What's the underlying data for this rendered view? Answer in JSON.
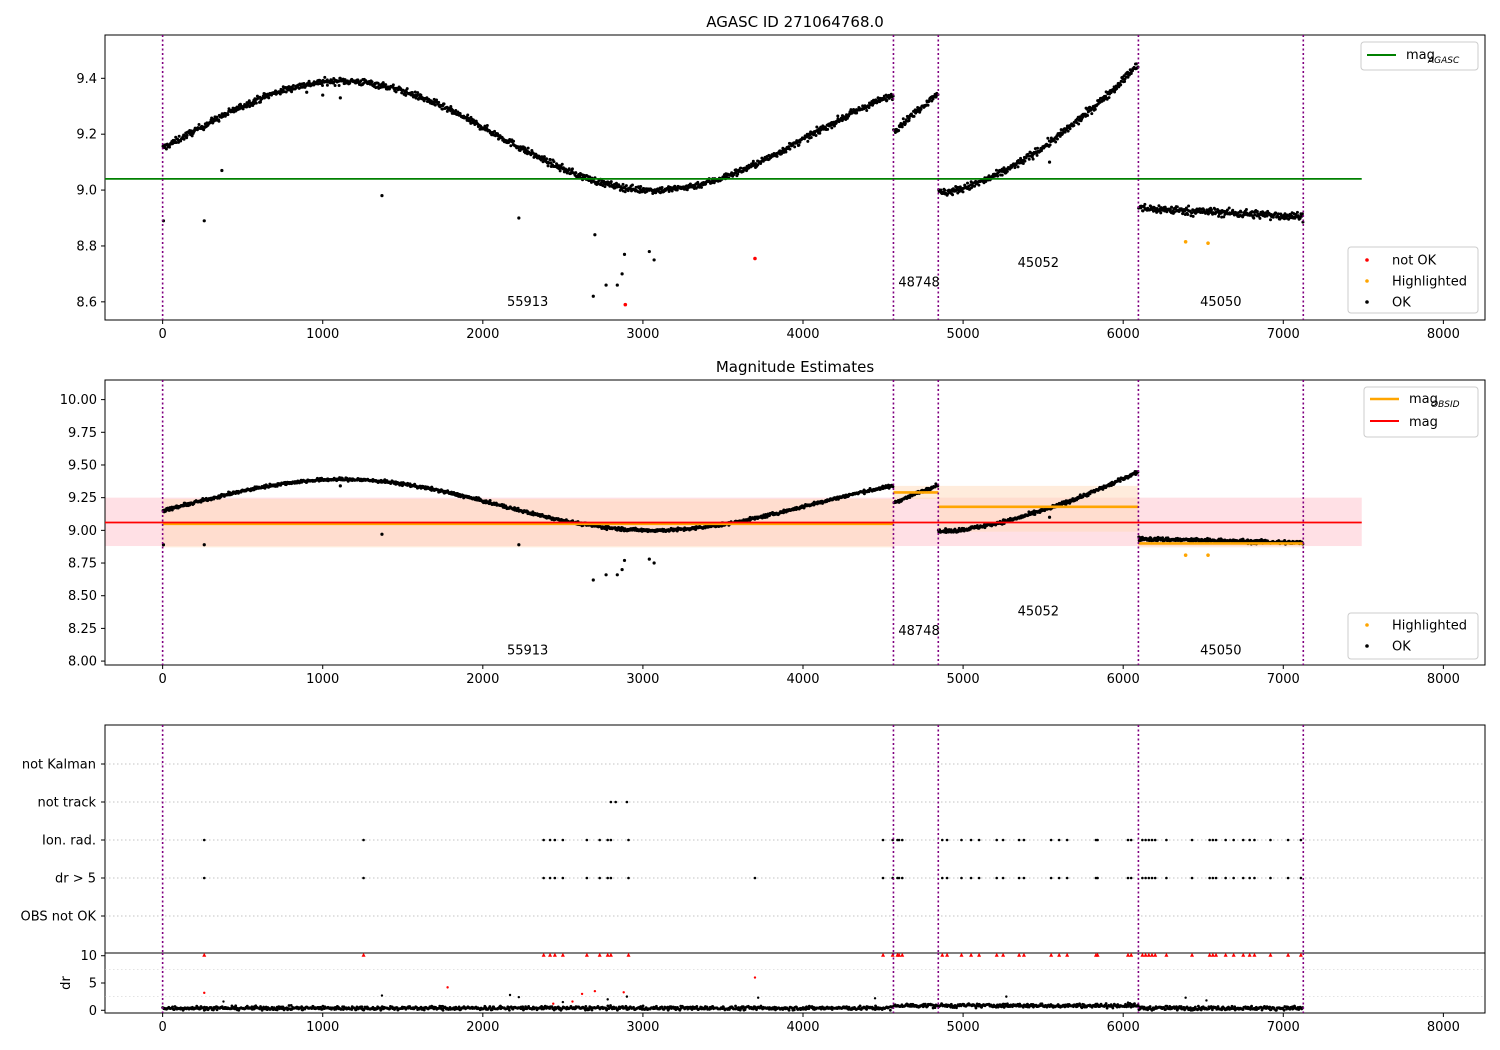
{
  "figure": {
    "title": "AGASC ID 271064768.0"
  },
  "colors": {
    "agasc_line": "#008000",
    "mag_line": "#ff0000",
    "obsid_line": "#ffa500",
    "not_ok": "#ff0000",
    "highlighted": "#ffa500",
    "ok": "#000000",
    "vline": "#800080",
    "band_mag": "#ffb6c1",
    "band_obsid": "#ffdab9"
  },
  "chart_data": [
    {
      "id": "top",
      "type": "scatter",
      "title": "AGASC ID 271064768.0",
      "xlim": [
        -360,
        8260
      ],
      "ylim": [
        8.535,
        9.555
      ],
      "xticks": [
        0,
        1000,
        2000,
        3000,
        4000,
        5000,
        6000,
        7000,
        8000
      ],
      "yticks": [
        8.6,
        8.8,
        9.0,
        9.2,
        9.4
      ],
      "ytick_labels": [
        "8.6",
        "8.8",
        "9.0",
        "9.2",
        "9.4"
      ],
      "vlines": [
        0,
        4565,
        4845,
        6095,
        7125
      ],
      "obsids": [
        {
          "label": "55913",
          "x": 2280,
          "y": 8.585
        },
        {
          "label": "48748",
          "x": 4725,
          "y": 8.655
        },
        {
          "label": "45052",
          "x": 5470,
          "y": 8.725
        },
        {
          "label": "45050",
          "x": 6610,
          "y": 8.585
        }
      ],
      "segments": [
        {
          "x0": 0,
          "x1": 4565,
          "kind": "wave",
          "amp": 0.195,
          "center": 9.195,
          "phase_x": 1120,
          "period": 3900,
          "noise": 0.012
        },
        {
          "x0": 4565,
          "x1": 4845,
          "kind": "linear",
          "y0": 9.21,
          "y1": 9.35,
          "noise": 0.012
        },
        {
          "x0": 4845,
          "x1": 6095,
          "kind": "rising",
          "y0": 8.99,
          "y1": 9.45,
          "noise": 0.014
        },
        {
          "x0": 6095,
          "x1": 7125,
          "kind": "flat",
          "y0": 8.935,
          "y1": 8.905,
          "noise": 0.015
        }
      ],
      "outliers": [
        {
          "x": 5,
          "y": 8.89
        },
        {
          "x": 260,
          "y": 8.89
        },
        {
          "x": 370,
          "y": 9.07
        },
        {
          "x": 900,
          "y": 9.35
        },
        {
          "x": 1000,
          "y": 9.34
        },
        {
          "x": 1110,
          "y": 9.33
        },
        {
          "x": 1370,
          "y": 8.98
        },
        {
          "x": 2225,
          "y": 8.9
        },
        {
          "x": 2690,
          "y": 8.62
        },
        {
          "x": 2700,
          "y": 8.84
        },
        {
          "x": 2770,
          "y": 8.66
        },
        {
          "x": 2840,
          "y": 8.66
        },
        {
          "x": 2870,
          "y": 8.7
        },
        {
          "x": 2885,
          "y": 8.77
        },
        {
          "x": 3040,
          "y": 8.78
        },
        {
          "x": 3070,
          "y": 8.75
        },
        {
          "x": 5540,
          "y": 9.1
        }
      ],
      "not_ok_points": [
        {
          "x": 2890,
          "y": 8.59
        },
        {
          "x": 3700,
          "y": 8.755
        }
      ],
      "highlighted_points": [
        {
          "x": 6390,
          "y": 8.815
        },
        {
          "x": 6530,
          "y": 8.81
        }
      ],
      "hlines": [
        {
          "name": "mag_AGASC",
          "y": 9.04,
          "x0": -360,
          "x1": 7490,
          "color": "#008000"
        }
      ],
      "legend_top": {
        "placement": "upper-right",
        "entries": [
          {
            "label": "mag",
            "sub": "AGASC"
          }
        ]
      },
      "legend_bottom": {
        "placement": "lower-right",
        "entries": [
          "not OK",
          "Highlighted",
          "OK"
        ]
      }
    },
    {
      "id": "mid",
      "type": "scatter",
      "title": "Magnitude Estimates",
      "xlim": [
        -360,
        8260
      ],
      "ylim": [
        7.97,
        10.15
      ],
      "xticks": [
        0,
        1000,
        2000,
        3000,
        4000,
        5000,
        6000,
        7000,
        8000
      ],
      "yticks": [
        8.0,
        8.25,
        8.5,
        8.75,
        9.0,
        9.25,
        9.5,
        9.75,
        10.0
      ],
      "ytick_labels": [
        "8.00",
        "8.25",
        "8.50",
        "8.75",
        "9.00",
        "9.25",
        "9.50",
        "9.75",
        "10.00"
      ],
      "vlines": [
        0,
        4565,
        4845,
        6095,
        7125
      ],
      "obsids": [
        {
          "label": "55913",
          "x": 2280,
          "y": 8.05
        },
        {
          "label": "48748",
          "x": 4725,
          "y": 8.2
        },
        {
          "label": "45052",
          "x": 5470,
          "y": 8.35
        },
        {
          "label": "45050",
          "x": 6610,
          "y": 8.05
        }
      ],
      "mag": {
        "y": 9.06,
        "lo": 8.88,
        "hi": 9.25,
        "x0": -360,
        "x1": 7490
      },
      "obsid_mags": [
        {
          "x0": 0,
          "x1": 4565,
          "y": 9.05,
          "lo": 8.87,
          "hi": 9.24
        },
        {
          "x0": 4565,
          "x1": 4845,
          "y": 9.29,
          "lo": 9.24,
          "hi": 9.34
        },
        {
          "x0": 4845,
          "x1": 6095,
          "y": 9.18,
          "lo": 8.99,
          "hi": 9.34
        },
        {
          "x0": 6095,
          "x1": 7125,
          "y": 8.9,
          "lo": 8.87,
          "hi": 8.93
        }
      ],
      "outliers": [
        {
          "x": 5,
          "y": 8.89
        },
        {
          "x": 260,
          "y": 8.89
        },
        {
          "x": 1110,
          "y": 9.34
        },
        {
          "x": 1370,
          "y": 8.97
        },
        {
          "x": 2225,
          "y": 8.89
        },
        {
          "x": 2690,
          "y": 8.62
        },
        {
          "x": 2770,
          "y": 8.66
        },
        {
          "x": 2840,
          "y": 8.66
        },
        {
          "x": 2870,
          "y": 8.7
        },
        {
          "x": 2885,
          "y": 8.77
        },
        {
          "x": 3040,
          "y": 8.78
        },
        {
          "x": 3070,
          "y": 8.75
        },
        {
          "x": 5540,
          "y": 9.1
        }
      ],
      "highlighted_points": [
        {
          "x": 6390,
          "y": 8.81
        },
        {
          "x": 6530,
          "y": 8.81
        }
      ],
      "legend_top": {
        "placement": "upper-right",
        "entries": [
          {
            "label": "mag",
            "sub": "OBSID"
          },
          {
            "label": "mag"
          }
        ]
      },
      "legend_bottom": {
        "placement": "lower-right",
        "entries": [
          "Highlighted",
          "OK"
        ]
      }
    },
    {
      "id": "flags",
      "type": "scatter",
      "xlim": [
        -360,
        8260
      ],
      "categories": [
        "not Kalman",
        "not track",
        "Ion. rad.",
        "dr > 5",
        "OBS not OK"
      ],
      "vlines": [
        0,
        4565,
        4845,
        6095,
        7125
      ],
      "rows": {
        "not track": [
          2800,
          2830,
          2900
        ],
        "Ion. rad.": [
          260,
          1255,
          2380,
          2420,
          2450,
          2500,
          2650,
          2730,
          2780,
          2800,
          2910,
          4500,
          4560,
          4590,
          4600,
          4620,
          4870,
          4900,
          4990,
          5050,
          5100,
          5210,
          5250,
          5350,
          5380,
          5550,
          5600,
          5650,
          5830,
          5840,
          6030,
          6050,
          6120,
          6140,
          6160,
          6180,
          6200,
          6270,
          6430,
          6540,
          6560,
          6580,
          6640,
          6690,
          6750,
          6790,
          6820,
          6920,
          7030,
          7110
        ],
        "dr > 5": [
          260,
          1255,
          2380,
          2420,
          2450,
          2500,
          2650,
          2730,
          2780,
          2800,
          2910,
          3700,
          4500,
          4560,
          4590,
          4600,
          4620,
          4870,
          4900,
          4990,
          5050,
          5100,
          5210,
          5250,
          5350,
          5380,
          5550,
          5600,
          5650,
          5830,
          5840,
          6030,
          6050,
          6120,
          6140,
          6160,
          6180,
          6200,
          6270,
          6430,
          6540,
          6560,
          6580,
          6640,
          6690,
          6750,
          6790,
          6820,
          6920,
          7030,
          7110
        ]
      }
    },
    {
      "id": "dr",
      "type": "scatter",
      "xlim": [
        -360,
        8260
      ],
      "ylim": [
        -0.5,
        10.5
      ],
      "ylabel": "dr",
      "xticks": [
        0,
        1000,
        2000,
        3000,
        4000,
        5000,
        6000,
        7000,
        8000
      ],
      "yticks": [
        0,
        5,
        10
      ],
      "ytick_labels": [
        "0",
        "5",
        "10"
      ],
      "vlines": [
        0,
        4565,
        4845,
        6095,
        7125
      ],
      "capped_points": [
        260,
        1255,
        2380,
        2420,
        2450,
        2500,
        2650,
        2730,
        2780,
        2800,
        2910,
        4500,
        4560,
        4590,
        4600,
        4620,
        4870,
        4900,
        4990,
        5050,
        5100,
        5210,
        5250,
        5350,
        5380,
        5550,
        5600,
        5650,
        5830,
        5840,
        6030,
        6050,
        6120,
        6140,
        6160,
        6180,
        6200,
        6270,
        6430,
        6540,
        6560,
        6580,
        6640,
        6690,
        6750,
        6790,
        6820,
        6920,
        7030,
        7110
      ],
      "red_points": [
        {
          "x": 260,
          "y": 3.2
        },
        {
          "x": 1780,
          "y": 4.2
        },
        {
          "x": 2620,
          "y": 3.0
        },
        {
          "x": 2700,
          "y": 3.5
        },
        {
          "x": 2880,
          "y": 3.3
        },
        {
          "x": 3700,
          "y": 6.0
        },
        {
          "x": 2560,
          "y": 1.6
        },
        {
          "x": 2440,
          "y": 1.2
        }
      ],
      "black_points": [
        {
          "x": 380,
          "y": 1.6
        },
        {
          "x": 1370,
          "y": 2.7
        },
        {
          "x": 2170,
          "y": 2.8
        },
        {
          "x": 2225,
          "y": 2.4
        },
        {
          "x": 2500,
          "y": 1.5
        },
        {
          "x": 2780,
          "y": 2.0
        },
        {
          "x": 2900,
          "y": 2.5
        },
        {
          "x": 3720,
          "y": 2.3
        },
        {
          "x": 5270,
          "y": 2.5
        },
        {
          "x": 6390,
          "y": 2.3
        },
        {
          "x": 6520,
          "y": 1.8
        },
        {
          "x": 4450,
          "y": 2.2
        },
        {
          "x": 6030,
          "y": 1.4
        }
      ]
    }
  ]
}
